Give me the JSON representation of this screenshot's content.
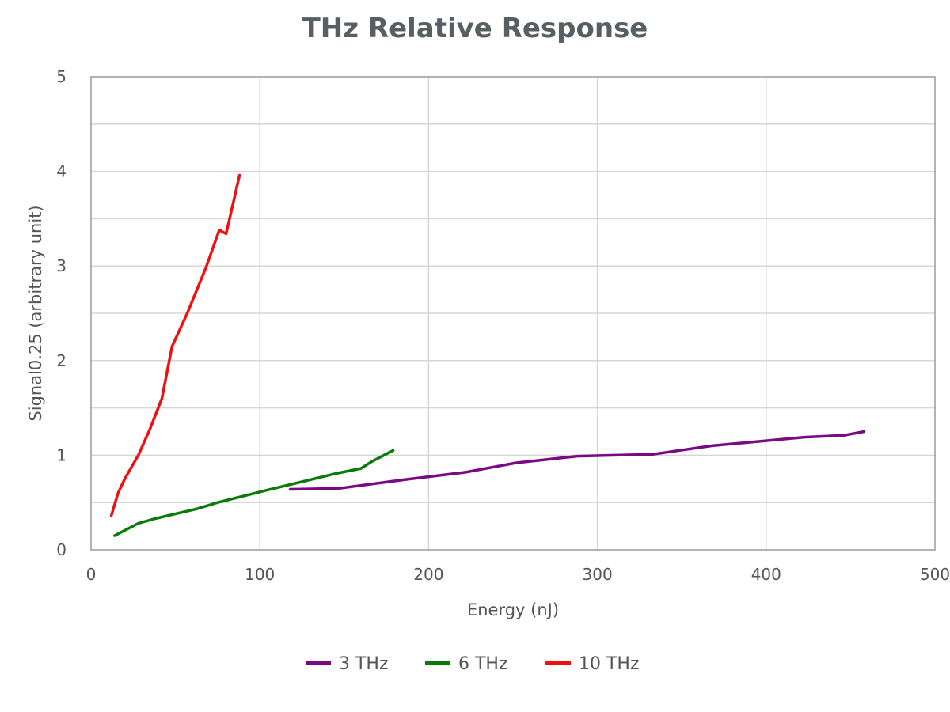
{
  "chart_data": {
    "type": "line",
    "title": "THz Relative Response",
    "xlabel": "Energy (nJ)",
    "ylabel": "Signal0.25 (arbitrary unit)",
    "xlim": [
      0,
      500
    ],
    "ylim": [
      0,
      5
    ],
    "x_ticks": [
      "0",
      "100",
      "200",
      "300",
      "400",
      "500"
    ],
    "y_ticks": [
      "0",
      "1",
      "2",
      "3",
      "4",
      "5"
    ],
    "grid": true,
    "legend_position": "bottom",
    "series": [
      {
        "name": "3 THz",
        "color": "#7a0a84",
        "x": [
          118,
          147,
          185,
          222,
          252,
          288,
          333,
          368,
          398,
          422,
          446,
          458
        ],
        "y": [
          0.64,
          0.65,
          0.74,
          0.82,
          0.92,
          0.99,
          1.01,
          1.1,
          1.15,
          1.19,
          1.21,
          1.25
        ]
      },
      {
        "name": "6 THz",
        "color": "#0a7a0a",
        "x": [
          14,
          28,
          38,
          62,
          75,
          104,
          146,
          160,
          166,
          179
        ],
        "y": [
          0.15,
          0.28,
          0.33,
          0.43,
          0.5,
          0.63,
          0.81,
          0.86,
          0.93,
          1.05
        ]
      },
      {
        "name": "10 THz",
        "color": "#f01010",
        "x": [
          12,
          16,
          20,
          28,
          35,
          42,
          48,
          57,
          68,
          76,
          80,
          88
        ],
        "y": [
          0.36,
          0.6,
          0.75,
          1.0,
          1.28,
          1.6,
          2.15,
          2.5,
          2.98,
          3.38,
          3.34,
          3.96
        ]
      }
    ]
  }
}
